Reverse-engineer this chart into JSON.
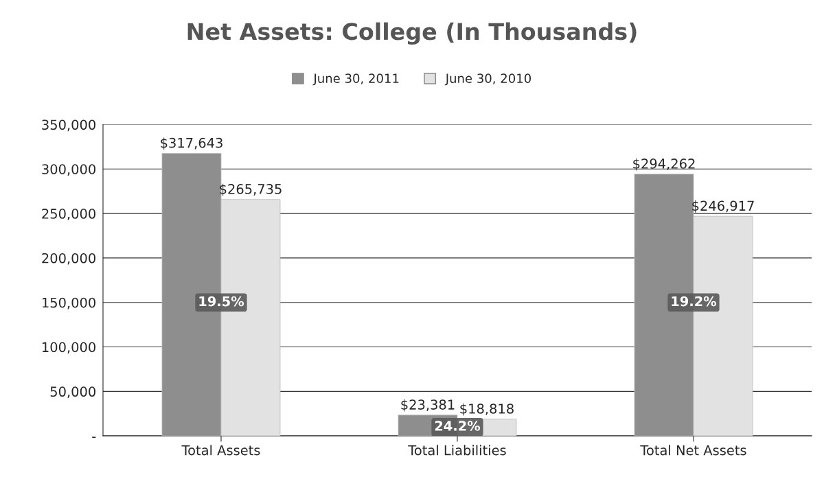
{
  "chart_data": {
    "type": "bar",
    "title": "Net Assets: College (In Thousands)",
    "categories": [
      "Total Assets",
      "Total Liabilities",
      "Total Net Assets"
    ],
    "series": [
      {
        "name": "June 30, 2011",
        "color": "#8e8e8e",
        "values": [
          317643,
          23381,
          294262
        ],
        "value_labels": [
          "$317,643",
          "$23,381",
          "$294,262"
        ]
      },
      {
        "name": "June 30, 2010",
        "color": "#e2e2e2",
        "values": [
          265735,
          18818,
          246917
        ],
        "value_labels": [
          "$265,735",
          "$18,818",
          "$246,917"
        ]
      }
    ],
    "ylim": [
      0,
      350000
    ],
    "yticks": [
      {
        "value": 0,
        "label": "-"
      },
      {
        "value": 50000,
        "label": "50,000"
      },
      {
        "value": 100000,
        "label": "100,000"
      },
      {
        "value": 150000,
        "label": "150,000"
      },
      {
        "value": 200000,
        "label": "200,000"
      },
      {
        "value": 250000,
        "label": "250,000"
      },
      {
        "value": 300000,
        "label": "300,000"
      },
      {
        "value": 350000,
        "label": "350,000"
      }
    ],
    "grid": "y",
    "legend": "top",
    "annotations": [
      {
        "text": "19.5%",
        "x": "Total Assets",
        "y": 150000
      },
      {
        "text": "24.2%",
        "x": "Total Liabilities",
        "y": 10000
      },
      {
        "text": "19.2%",
        "x": "Total Net Assets",
        "y": 150000
      }
    ]
  }
}
